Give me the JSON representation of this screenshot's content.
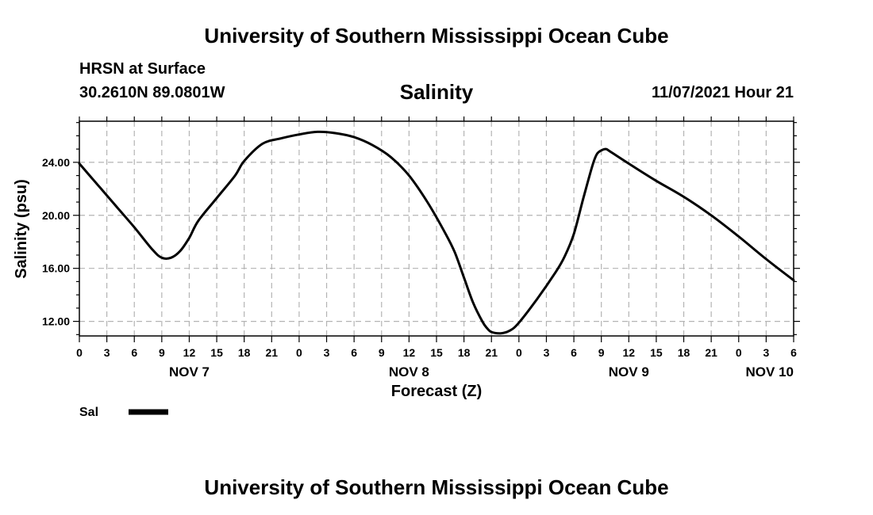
{
  "header": {
    "title": "University of Southern Mississippi Ocean Cube",
    "station": "HRSN at Surface",
    "coords": "30.2610N  89.0801W",
    "chart_title": "Salinity",
    "datetime": "11/07/2021 Hour 21"
  },
  "footer": {
    "title": "University of Southern Mississippi Ocean Cube"
  },
  "chart_data": {
    "type": "line",
    "title": "Salinity",
    "xlabel": "Forecast (Z)",
    "ylabel": "Salinity (psu)",
    "xlim": [
      0,
      78
    ],
    "ylim": [
      10.9,
      27.1
    ],
    "grid": true,
    "x_tick_labels": [
      "0",
      "3",
      "6",
      "9",
      "12",
      "15",
      "18",
      "21",
      "0",
      "3",
      "6",
      "9",
      "12",
      "15",
      "18",
      "21",
      "0",
      "3",
      "6",
      "9",
      "12",
      "15",
      "18",
      "21",
      "0",
      "3",
      "6"
    ],
    "y_ticks": [
      12.0,
      16.0,
      20.0,
      24.0
    ],
    "y_tick_labels": [
      "12.00",
      "16.00",
      "20.00",
      "24.00"
    ],
    "day_labels": [
      {
        "label": "NOV 7",
        "hour": 12
      },
      {
        "label": "NOV 8",
        "hour": 36
      },
      {
        "label": "NOV 9",
        "hour": 60
      },
      {
        "label": "NOV 10",
        "hour": 78
      }
    ],
    "legend": [
      {
        "name": "Sal",
        "color": "#000000"
      }
    ],
    "series": [
      {
        "name": "Sal",
        "color": "#000000",
        "x": [
          0,
          2,
          4,
          6,
          8,
          9,
          10,
          11,
          12,
          13,
          15,
          17,
          18,
          20,
          22,
          24,
          26,
          28,
          30,
          32,
          34,
          36,
          38,
          40,
          41,
          42,
          43,
          44,
          44.5,
          45,
          46,
          47,
          48,
          50,
          52,
          53,
          54,
          55,
          56,
          56.5,
          57,
          57.5,
          58,
          60,
          63,
          66,
          69,
          72,
          75,
          78
        ],
        "y": [
          23.9,
          22.3,
          20.7,
          19.1,
          17.4,
          16.8,
          16.8,
          17.3,
          18.3,
          19.6,
          21.3,
          23.0,
          24.1,
          25.4,
          25.8,
          26.1,
          26.3,
          26.2,
          25.9,
          25.3,
          24.4,
          23.0,
          21.0,
          18.6,
          17.2,
          15.3,
          13.4,
          12.0,
          11.5,
          11.2,
          11.1,
          11.3,
          11.9,
          13.7,
          15.7,
          16.9,
          18.6,
          21.2,
          23.7,
          24.6,
          24.9,
          25.0,
          24.8,
          23.9,
          22.6,
          21.4,
          20.0,
          18.4,
          16.7,
          15.1
        ]
      }
    ]
  }
}
